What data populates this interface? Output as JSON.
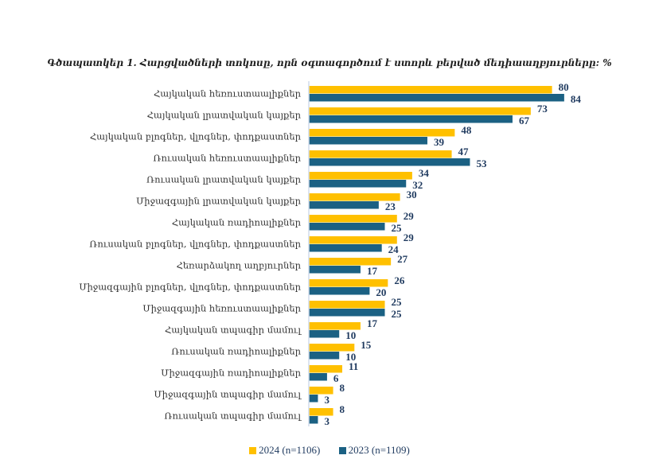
{
  "chart_data": {
    "type": "bar",
    "orientation": "horizontal",
    "title": "Գծապատկեր 1. Հարցվածների տոկոսը, որն օգտագործում է ստորև բերված մեդիաաղբյուրները: %",
    "xlabel": "",
    "ylabel": "",
    "xlim": [
      0,
      90
    ],
    "grid": false,
    "legend_position": "bottom",
    "categories": [
      "Հայկական հեռուստաալիքներ",
      "Հայկական լրատվական կայքեր",
      "Հայկական բլոգներ, վլոգներ, փոդքաստներ",
      "Ռուսական հեռուստաալիքներ",
      "Ռուսական լրատվական կայքեր",
      "Միջազգային լրատվական կայքեր",
      "Հայկական ռադիոալիքներ",
      "Ռուսական բլոգներ, վլոգներ, փոդքաստներ",
      "Հեռարձակող աղբյուրներ",
      "Միջազգային բլոգներ, վլոգներ, փոդքաստներ",
      "Միջազգային հեռուստաալիքներ",
      "Հայկական տպագիր մամուլ",
      "Ռուսական ռադիոալիքներ",
      "Միջազգային ռադիոալիքներ",
      "Միջազգային տպագիր մամուլ",
      "Ռուսական տպագիր մամուլ"
    ],
    "series": [
      {
        "name": "2024 (n=1106)",
        "color": "#FFC000",
        "values": [
          80,
          73,
          48,
          47,
          34,
          30,
          29,
          29,
          27,
          26,
          25,
          17,
          15,
          11,
          8,
          8
        ]
      },
      {
        "name": "2023 (n=1109)",
        "color": "#1B6183",
        "values": [
          84,
          67,
          39,
          53,
          32,
          23,
          25,
          24,
          17,
          20,
          25,
          10,
          10,
          6,
          3,
          3
        ]
      }
    ]
  }
}
